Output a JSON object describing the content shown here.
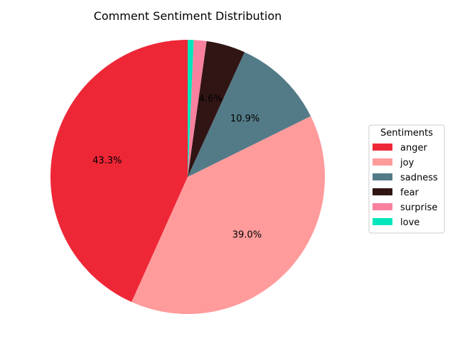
{
  "chart_data": {
    "type": "pie",
    "title": "Comment Sentiment Distribution",
    "categories": [
      "anger",
      "joy",
      "sadness",
      "fear",
      "surprise",
      "love"
    ],
    "values": [
      43.3,
      39.0,
      10.9,
      4.6,
      1.5,
      0.7
    ],
    "display_labels": [
      "43.3%",
      "39.0%",
      "10.9%",
      "4.6%",
      "",
      ""
    ],
    "colors": [
      "#ee2737",
      "#ff9b9b",
      "#537b87",
      "#311515",
      "#f7819f",
      "#00e6bc"
    ],
    "start_angle_deg": 90,
    "direction": "counterclockwise",
    "legend": {
      "title": "Sentiments",
      "placement": "center-right"
    }
  }
}
